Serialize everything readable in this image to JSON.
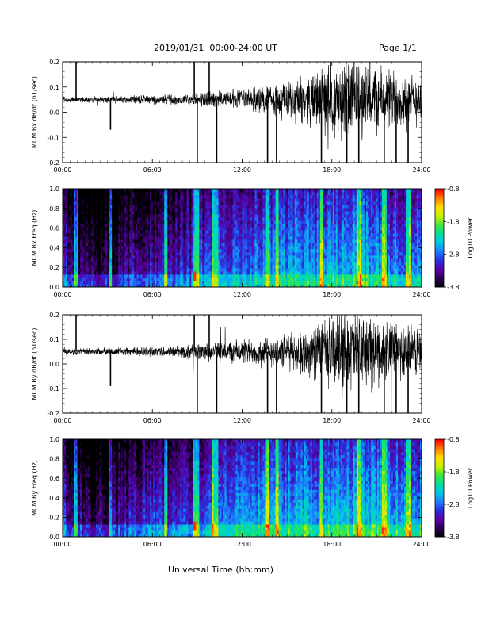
{
  "header": {
    "date_range": "2019/01/31  00:00-24:00 UT",
    "page": "Page 1/1"
  },
  "x_axis_title": "Universal Time (hh:mm)",
  "colors": {
    "trace": "#000000",
    "colormap": [
      "#000000",
      "#2b0050",
      "#5a00a0",
      "#2a2ad8",
      "#1e78ff",
      "#00c8e6",
      "#00e0a0",
      "#3ce63c",
      "#c8f000",
      "#ffe000",
      "#ff8000",
      "#ff0000"
    ]
  },
  "chart_data": [
    {
      "type": "line",
      "ylabel": "MCM Bx dB/dt (nT/sec)",
      "xlim": [
        0,
        24
      ],
      "ylim": [
        -0.2,
        0.2
      ],
      "x_ticks": [
        "00:00",
        "06:00",
        "12:00",
        "18:00",
        "24:00"
      ],
      "y_ticks": [
        "-0.2",
        "-0.1",
        "0.0",
        "0.1",
        "0.2"
      ],
      "baseline": 0.05,
      "noise_amplitude_by_hour": [
        0.01,
        0.01,
        0.012,
        0.012,
        0.012,
        0.015,
        0.016,
        0.018,
        0.02,
        0.025,
        0.03,
        0.035,
        0.04,
        0.045,
        0.05,
        0.06,
        0.08,
        0.1,
        0.13,
        0.15,
        0.14,
        0.12,
        0.11,
        0.1,
        0.09
      ],
      "spikes_hours": [
        0.9,
        3.2,
        8.8,
        9.0,
        9.8,
        10.3,
        13.7,
        14.3,
        17.3,
        19.0,
        19.8,
        21.5,
        22.3,
        23.1
      ],
      "spike_values": [
        0.22,
        -0.07,
        0.22,
        -0.2,
        0.22,
        -0.2,
        -0.2,
        -0.2,
        -0.2,
        -0.2,
        -0.2,
        -0.2,
        -0.2,
        -0.2
      ]
    },
    {
      "type": "heatmap",
      "ylabel": "MCM Bx Freq (Hz)",
      "xlim": [
        0,
        24
      ],
      "ylim": [
        0,
        1
      ],
      "x_ticks": [
        "00:00",
        "06:00",
        "12:00",
        "18:00",
        "24:00"
      ],
      "y_ticks": [
        "0.0",
        "0.2",
        "0.4",
        "0.6",
        "0.8",
        "1.0"
      ],
      "colorbar": {
        "label": "Log10 Power",
        "range": [
          -3.8,
          -0.8
        ],
        "ticks": [
          "-0.8",
          "-1.8",
          "-2.8",
          "-3.8"
        ]
      },
      "log_power_level_by_hour": [
        -2.9,
        -3.3,
        -3.5,
        -3.4,
        -3.2,
        -3.1,
        -3.0,
        -3.0,
        -2.9,
        -2.9,
        -2.6,
        -2.7,
        -2.6,
        -2.6,
        -2.5,
        -2.5,
        -2.4,
        -2.5,
        -2.4,
        -2.4,
        -2.3,
        -2.4,
        -2.5,
        -2.5,
        -2.5
      ],
      "broadband_bursts_hours": [
        0.9,
        3.2,
        6.9,
        8.8,
        9.0,
        10.1,
        10.3,
        13.7,
        14.3,
        17.3,
        19.8,
        21.5,
        23.1
      ],
      "peak_hour": 8.8
    },
    {
      "type": "line",
      "ylabel": "MCM By dB/dt (nT/sec)",
      "xlim": [
        0,
        24
      ],
      "ylim": [
        -0.2,
        0.2
      ],
      "x_ticks": [
        "00:00",
        "06:00",
        "12:00",
        "18:00",
        "24:00"
      ],
      "y_ticks": [
        "-0.2",
        "-0.1",
        "0.0",
        "0.1",
        "0.2"
      ],
      "baseline": 0.05,
      "noise_amplitude_by_hour": [
        0.012,
        0.012,
        0.014,
        0.014,
        0.015,
        0.017,
        0.018,
        0.02,
        0.025,
        0.03,
        0.035,
        0.04,
        0.045,
        0.05,
        0.055,
        0.065,
        0.08,
        0.1,
        0.13,
        0.15,
        0.14,
        0.12,
        0.11,
        0.1,
        0.09
      ],
      "spikes_hours": [
        0.9,
        3.2,
        8.8,
        9.0,
        9.8,
        10.3,
        13.7,
        14.3,
        17.3,
        19.0,
        19.8,
        21.5,
        22.3,
        23.1
      ],
      "spike_values": [
        0.22,
        -0.09,
        0.22,
        -0.2,
        0.22,
        -0.2,
        -0.2,
        -0.2,
        -0.2,
        -0.2,
        -0.2,
        -0.2,
        -0.2,
        -0.2
      ]
    },
    {
      "type": "heatmap",
      "ylabel": "MCM By Freq (Hz)",
      "xlim": [
        0,
        24
      ],
      "ylim": [
        0,
        1
      ],
      "x_ticks": [
        "00:00",
        "06:00",
        "12:00",
        "18:00",
        "24:00"
      ],
      "y_ticks": [
        "0.0",
        "0.2",
        "0.4",
        "0.6",
        "0.8",
        "1.0"
      ],
      "colorbar": {
        "label": "Log10 Power",
        "range": [
          -3.8,
          -0.8
        ],
        "ticks": [
          "-0.8",
          "-1.8",
          "-2.8",
          "-3.8"
        ]
      },
      "log_power_level_by_hour": [
        -2.9,
        -3.2,
        -3.4,
        -3.3,
        -3.1,
        -3.0,
        -2.9,
        -2.9,
        -2.8,
        -2.8,
        -2.5,
        -2.6,
        -2.5,
        -2.5,
        -2.4,
        -2.4,
        -2.3,
        -2.4,
        -2.3,
        -2.3,
        -2.2,
        -2.3,
        -2.4,
        -2.4,
        -2.4
      ],
      "broadband_bursts_hours": [
        0.9,
        3.2,
        6.9,
        8.8,
        9.0,
        10.1,
        10.3,
        13.7,
        14.3,
        17.3,
        19.8,
        21.5,
        23.1
      ],
      "peak_hour": 8.8
    }
  ]
}
